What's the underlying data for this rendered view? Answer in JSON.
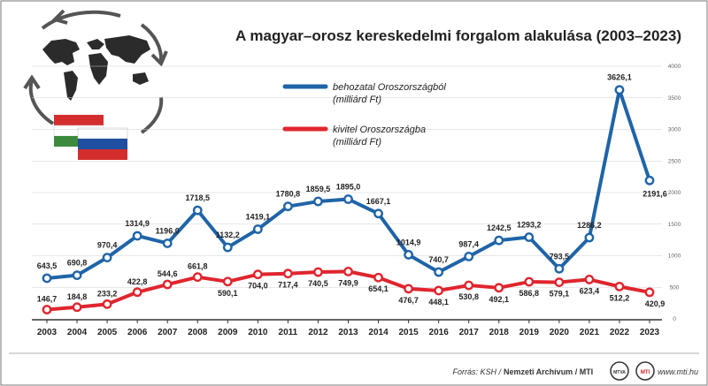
{
  "chart_data": {
    "type": "line",
    "title": "A magyar–orosz kereskedelmi forgalom alakulása (2003–2023)",
    "categories": [
      "2003",
      "2004",
      "2005",
      "2006",
      "2007",
      "2008",
      "2009",
      "2010",
      "2011",
      "2012",
      "2013",
      "2014",
      "2015",
      "2016",
      "2017",
      "2018",
      "2019",
      "2020",
      "2021",
      "2022",
      "2023"
    ],
    "series": [
      {
        "name": "behozatal Oroszországból (milliárd Ft)",
        "name_line1": "behozatal Oroszországból",
        "name_line2": "(milliárd Ft)",
        "color": "#1f64a8",
        "values": [
          643.5,
          690.8,
          970.4,
          1314.9,
          1196.0,
          1718.5,
          1132.2,
          1419.1,
          1780.8,
          1859.5,
          1895.0,
          1667.1,
          1014.9,
          740.7,
          987.4,
          1242.5,
          1293.2,
          793.5,
          1286.2,
          3626.1,
          2191.6
        ],
        "labels": [
          "643,5",
          "690,8",
          "970,4",
          "1314,9",
          "1196,0",
          "1718,5",
          "1132,2",
          "1419,1",
          "1780,8",
          "1859,5",
          "1895,0",
          "1667,1",
          "1014,9",
          "740,7",
          "987,4",
          "1242,5",
          "1293,2",
          "793,5",
          "1286,2",
          "3626,1",
          "2191,6"
        ]
      },
      {
        "name": "kivitel Oroszországba (milliárd Ft)",
        "name_line1": "kivitel Oroszországba",
        "name_line2": "(milliárd Ft)",
        "color": "#e0252e",
        "values": [
          146.7,
          184.8,
          233.2,
          422.8,
          544.6,
          661.8,
          590.1,
          704.0,
          717.4,
          740.5,
          749.9,
          654.1,
          476.7,
          448.1,
          530.8,
          492.1,
          586.8,
          579.1,
          623.4,
          512.2,
          420.9
        ],
        "labels": [
          "146,7",
          "184,8",
          "233,2",
          "422,8",
          "544,6",
          "661,8",
          "590,1",
          "704,0",
          "717,4",
          "740,5",
          "749,9",
          "654,1",
          "476,7",
          "448,1",
          "530,8",
          "492,1",
          "586,8",
          "579,1",
          "623,4",
          "512,2",
          "420,9"
        ]
      }
    ],
    "ylim": [
      0,
      4000
    ],
    "yticks": [
      "0",
      "500",
      "1000",
      "1500",
      "2000",
      "2500",
      "3000",
      "3500",
      "4000"
    ],
    "yaxis_position": "right",
    "grid": true,
    "legend_position": "top-left"
  },
  "footer": {
    "source_prefix": "Forrás: KSH /",
    "source_bold": "Nemzeti Archívum / MTI",
    "badge1": "MTVA",
    "badge2": "MTI",
    "website": "www.mti.hu"
  },
  "icons": [
    "globe-map-icon",
    "circular-arrows-icon",
    "hungarian-flag-icon",
    "russian-flag-icon"
  ],
  "colors": {
    "import": "#1f64a8",
    "export": "#e0252e",
    "grid": "#d0d0d0",
    "axis": "#333333"
  }
}
